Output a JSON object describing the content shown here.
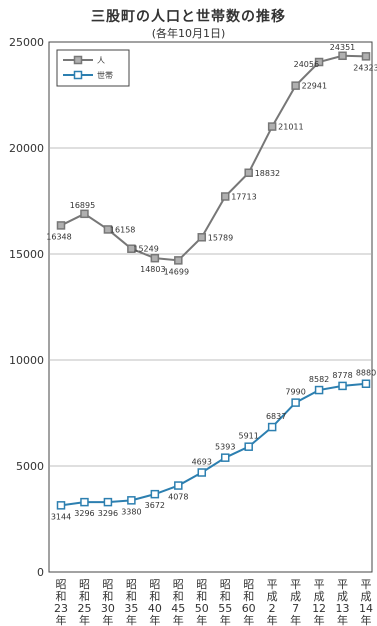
{
  "chart_data": {
    "type": "line",
    "title": "三股町の人口と世帯数の推移",
    "subtitle": "(各年10月1日)",
    "categories": [
      [
        "昭",
        "和",
        "23",
        "年"
      ],
      [
        "昭",
        "和",
        "25",
        "年"
      ],
      [
        "昭",
        "和",
        "30",
        "年"
      ],
      [
        "昭",
        "和",
        "35",
        "年"
      ],
      [
        "昭",
        "和",
        "40",
        "年"
      ],
      [
        "昭",
        "和",
        "45",
        "年"
      ],
      [
        "昭",
        "和",
        "50",
        "年"
      ],
      [
        "昭",
        "和",
        "55",
        "年"
      ],
      [
        "昭",
        "和",
        "60",
        "年"
      ],
      [
        "平",
        "成",
        "2",
        "年"
      ],
      [
        "平",
        "成",
        "7",
        "年"
      ],
      [
        "平",
        "成",
        "12",
        "年"
      ],
      [
        "平",
        "成",
        "13",
        "年"
      ],
      [
        "平",
        "成",
        "14",
        "年"
      ]
    ],
    "series": [
      {
        "name": "人",
        "color": "#777777",
        "fill": "#b0b0b0",
        "values": [
          16348,
          16895,
          16158,
          15249,
          14803,
          14699,
          15789,
          17713,
          18832,
          21011,
          22941,
          24056,
          24351,
          24323
        ]
      },
      {
        "name": "世帯",
        "color": "#2c7fb0",
        "fill": "#ffffff",
        "values": [
          3144,
          3296,
          3296,
          3380,
          3672,
          4078,
          4693,
          5393,
          5911,
          6837,
          7990,
          8582,
          8778,
          8880
        ]
      }
    ],
    "ylim": [
      0,
      25000
    ],
    "yticks": [
      0,
      5000,
      10000,
      15000,
      20000,
      25000
    ],
    "grid": true,
    "legend": "top-left"
  }
}
